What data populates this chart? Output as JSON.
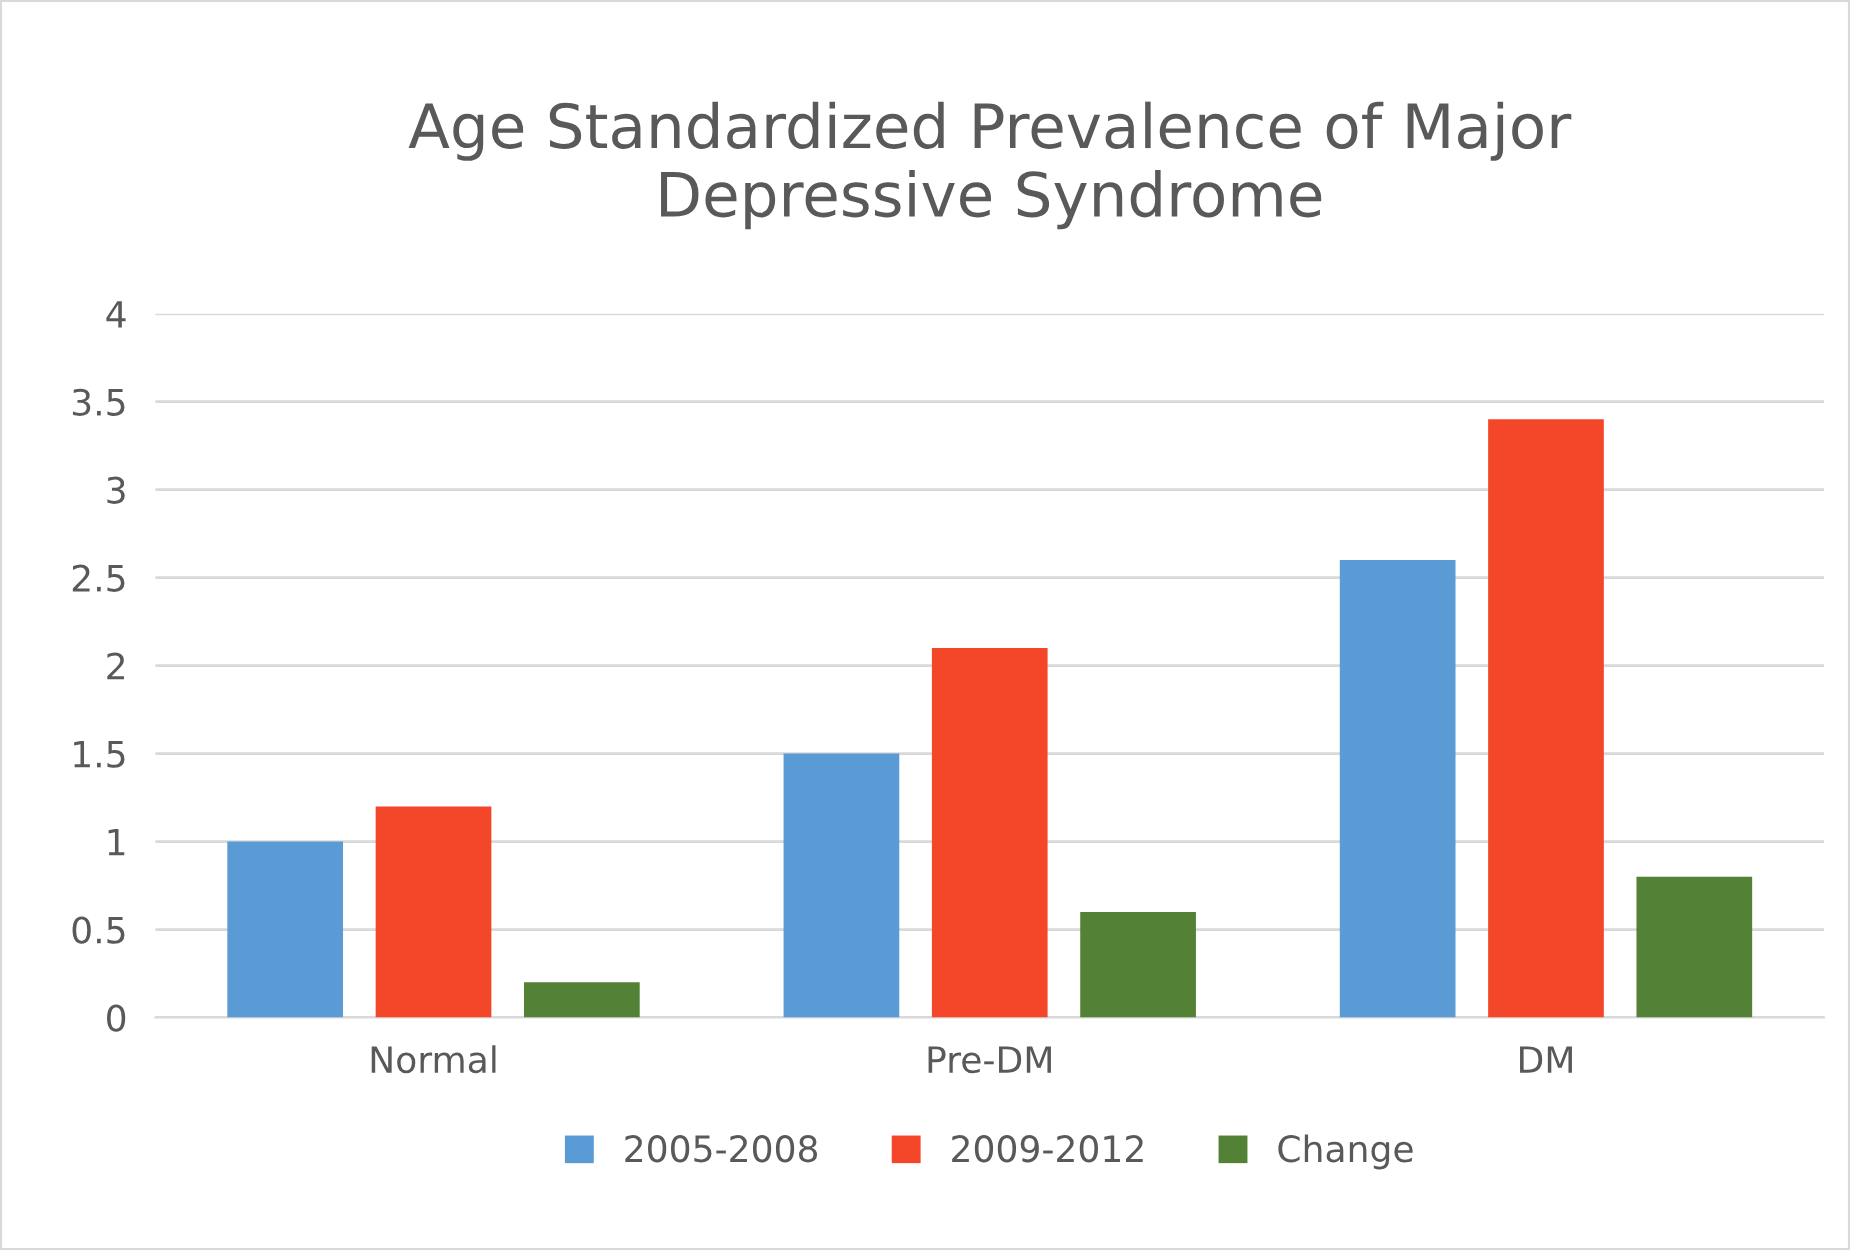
{
  "chart_data": {
    "type": "bar",
    "title": "Age Standardized Prevalence of Major\nDepressive Syndrome",
    "categories": [
      "Normal",
      "Pre-DM",
      "DM"
    ],
    "series": [
      {
        "name": "2005-2008",
        "color": "#5b9bd5",
        "values": [
          1,
          1.5,
          2.6
        ]
      },
      {
        "name": "2009-2012",
        "color": "#f4472a",
        "values": [
          1.2,
          2.1,
          3.4
        ]
      },
      {
        "name": "Change",
        "color": "#538135",
        "values": [
          0.2,
          0.6,
          0.8
        ]
      }
    ],
    "ylim": [
      0,
      4
    ],
    "yticks": [
      0,
      0.5,
      1,
      1.5,
      2,
      2.5,
      3,
      3.5,
      4
    ],
    "grid": "y",
    "legend": "bottom"
  }
}
